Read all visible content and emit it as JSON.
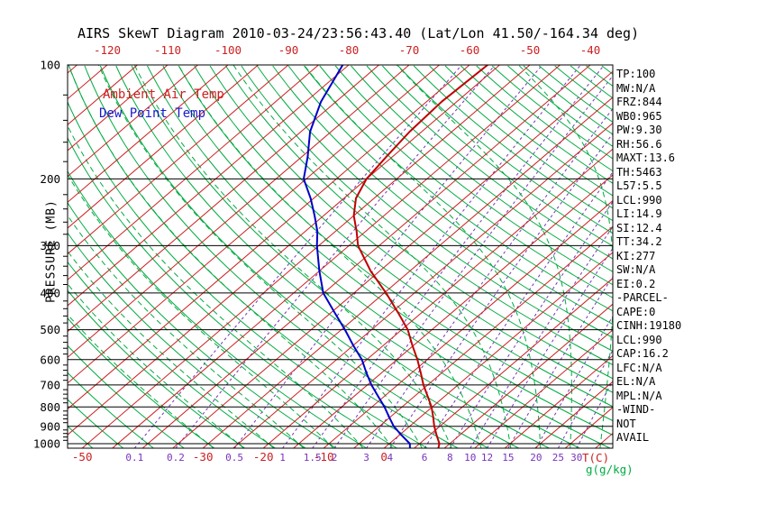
{
  "title": "AIRS SkewT Diagram 2010-03-24/23:56:43.40 (Lat/Lon 41.50/-164.34 deg)",
  "legend": {
    "air_temp_label": "Ambient Air Temp",
    "dew_point_label": "Dew Point Temp"
  },
  "axes": {
    "pressure_label": "PRESSURE (MB)",
    "pressure_ticks": [
      100,
      200,
      300,
      400,
      500,
      600,
      700,
      800,
      900,
      1000
    ],
    "top_temp_labels_c": [
      -120,
      -110,
      -100,
      -90,
      -80,
      -70,
      -60,
      -50,
      -40
    ],
    "bottom_temp_labels_c": [
      -50,
      -30,
      -20,
      -10,
      0
    ],
    "temp_unit_label": "T(C)",
    "mixing_unit_label": "g(g/kg)"
  },
  "stats": [
    "TP:100",
    "MW:N/A",
    "FRZ:844",
    "WB0:965",
    "PW:9.30",
    "RH:56.6",
    "MAXT:13.6",
    "TH:5463",
    "L57:5.5",
    "LCL:990",
    "LI:14.9",
    "SI:12.4",
    "TT:34.2",
    "KI:277",
    "SW:N/A",
    "EI:0.2",
    "-PARCEL-",
    "CAPE:0",
    "CINH:19180",
    "LCL:990",
    "CAP:16.2",
    "LFC:N/A",
    "EL:N/A",
    "MPL:N/A",
    "-WIND-",
    "NOT",
    "AVAIL"
  ],
  "colors": {
    "isotherm": "#cc2020",
    "adiabat_green": "#00ab41",
    "mixing_violet": "#7733bb",
    "temp_profile": "#c00000",
    "dew_profile": "#0000c8",
    "axis_black": "#000000",
    "label_red": "#cc2020"
  },
  "chart_data": {
    "type": "line",
    "title": "AIRS Skew-T / Log-P sounding",
    "xlabel": "T(C)",
    "ylabel": "PRESSURE (MB)",
    "pressure_range_mb": [
      100,
      1028
    ],
    "grid": {
      "isobars_mb": [
        100,
        200,
        300,
        400,
        500,
        600,
        700,
        800,
        900,
        1000
      ],
      "isotherms_c": {
        "min": -130,
        "max": 40,
        "step": 5
      },
      "dry_adiabats_c": {
        "min": -50,
        "max": 185,
        "step": 5
      },
      "moist_adiabats_c": {
        "min": -30,
        "max": 35,
        "step": 5
      },
      "mixing_ratios_gkg": [
        0.1,
        0.2,
        0.5,
        1,
        1.5,
        2,
        3,
        4,
        6,
        8,
        10,
        12,
        15,
        20,
        25,
        30
      ]
    },
    "series": [
      {
        "name": "Ambient Air Temp",
        "color_key": "temp_profile",
        "points_p_t": [
          [
            100,
            -57
          ],
          [
            125,
            -57.5
          ],
          [
            150,
            -57
          ],
          [
            175,
            -56
          ],
          [
            200,
            -55
          ],
          [
            225,
            -53
          ],
          [
            250,
            -50
          ],
          [
            275,
            -46.5
          ],
          [
            300,
            -43.5
          ],
          [
            350,
            -36.5
          ],
          [
            400,
            -29.7
          ],
          [
            450,
            -24
          ],
          [
            500,
            -19
          ],
          [
            550,
            -15.2
          ],
          [
            600,
            -11.6
          ],
          [
            650,
            -8.5
          ],
          [
            700,
            -5.7
          ],
          [
            750,
            -2.8
          ],
          [
            800,
            -0.1
          ],
          [
            850,
            2.1
          ],
          [
            900,
            4.1
          ],
          [
            950,
            6.2
          ],
          [
            1000,
            8.3
          ],
          [
            1028,
            9
          ]
        ]
      },
      {
        "name": "Dew Point Temp",
        "color_key": "dew_profile",
        "points_p_t": [
          [
            100,
            -81
          ],
          [
            125,
            -77.5
          ],
          [
            150,
            -73.5
          ],
          [
            175,
            -69
          ],
          [
            200,
            -65.4
          ],
          [
            225,
            -60.5
          ],
          [
            250,
            -56.5
          ],
          [
            275,
            -53
          ],
          [
            300,
            -50.3
          ],
          [
            350,
            -45
          ],
          [
            400,
            -40.1
          ],
          [
            450,
            -34.5
          ],
          [
            500,
            -29.4
          ],
          [
            550,
            -25
          ],
          [
            600,
            -20.8
          ],
          [
            650,
            -17.5
          ],
          [
            700,
            -14.3
          ],
          [
            750,
            -11
          ],
          [
            800,
            -7.9
          ],
          [
            850,
            -5.2
          ],
          [
            900,
            -2.6
          ],
          [
            950,
            0.4
          ],
          [
            1000,
            3.4
          ],
          [
            1028,
            4.3
          ]
        ]
      }
    ]
  }
}
